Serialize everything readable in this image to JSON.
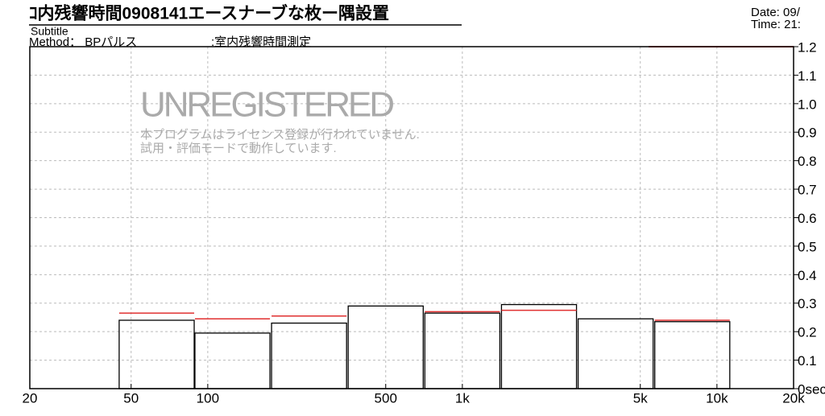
{
  "header": {
    "title": "ｺ内残響時間0908141エースナーブな枚ー隅設置",
    "date": "Date: 09/",
    "time": "Time: 21:",
    "subtitle": "Subtitle",
    "method": "Method： BPパルス",
    "measure": ":室内残響時間測定"
  },
  "watermark": {
    "title": "UNREGISTERED",
    "line1": "本プログラムはライセンス登録が行われていません.",
    "line2": "試用・評価モードで動作しています."
  },
  "chart_data": {
    "type": "bar",
    "x_scale": "log",
    "x": [
      63,
      125,
      250,
      500,
      1000,
      2000,
      4000,
      8000
    ],
    "series": [
      {
        "color": "#000000",
        "values": [
          0.24,
          0.195,
          0.23,
          0.29,
          0.265,
          0.295,
          0.245,
          0.235
        ]
      },
      {
        "color": "#e03030",
        "values": [
          0.265,
          0.245,
          0.255,
          null,
          0.27,
          0.275,
          null,
          0.24
        ]
      }
    ],
    "xlim": [
      20,
      20000
    ],
    "xticks": [
      20,
      50,
      100,
      500,
      {
        "value": 1000,
        "label": "1k"
      },
      {
        "value": 5000,
        "label": "5k"
      },
      {
        "value": 10000,
        "label": "10k"
      },
      {
        "value": 20000,
        "label": "20k"
      }
    ],
    "ylim": [
      0,
      1.2
    ],
    "yticks": [
      {
        "value": 0,
        "label": "0sec"
      },
      0.1,
      0.2,
      0.3,
      0.4,
      0.5,
      0.6,
      0.7,
      0.8,
      0.9,
      {
        "value": 1,
        "label": "1.0"
      },
      1.1,
      1.2
    ],
    "grid": true
  }
}
